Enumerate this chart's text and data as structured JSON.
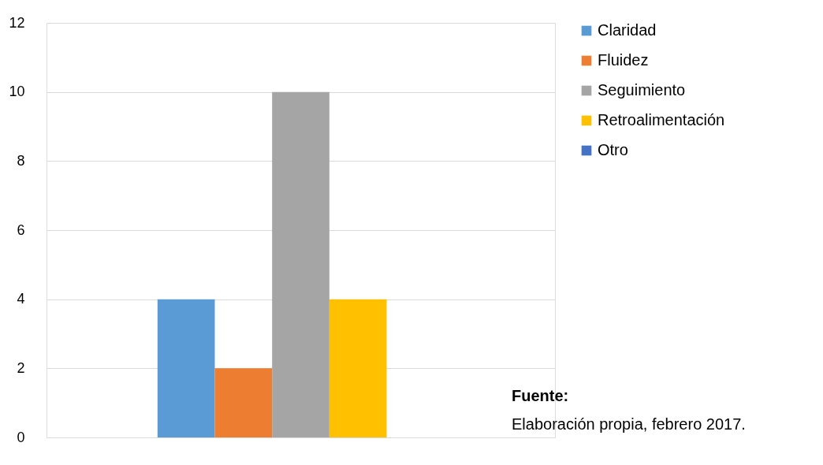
{
  "chart_data": {
    "type": "bar",
    "categories": [
      null
    ],
    "series": [
      {
        "name": "Claridad",
        "color": "#5b9bd5",
        "values": [
          4
        ]
      },
      {
        "name": "Fluidez",
        "color": "#ed7d31",
        "values": [
          2
        ]
      },
      {
        "name": "Seguimiento",
        "color": "#a5a5a5",
        "values": [
          10
        ]
      },
      {
        "name": "Retroalimentación",
        "color": "#ffc000",
        "values": [
          4
        ]
      },
      {
        "name": "Otro",
        "color": "#4472c4",
        "values": [
          0
        ]
      }
    ],
    "ylim": [
      0,
      12
    ],
    "yticks": [
      0,
      2,
      4,
      6,
      8,
      10,
      12
    ],
    "grid": "y",
    "legend": "right",
    "tick_labels": "y",
    "annotations": [
      "Fuente:",
      "Elaboración propia, febrero 2017."
    ]
  }
}
